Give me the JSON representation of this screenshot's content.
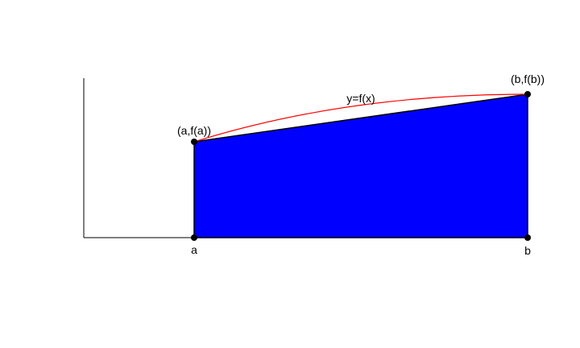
{
  "labels": {
    "point_a": "(a,f(a))",
    "point_b": "(b,f(b))",
    "curve": "y=f(x)",
    "tick_a": "a",
    "tick_b": "b"
  },
  "colors": {
    "trapezoid_fill": "#0000ff",
    "curve_stroke": "#ff0000",
    "axis_stroke": "#000000",
    "background": "#ffffff"
  }
}
